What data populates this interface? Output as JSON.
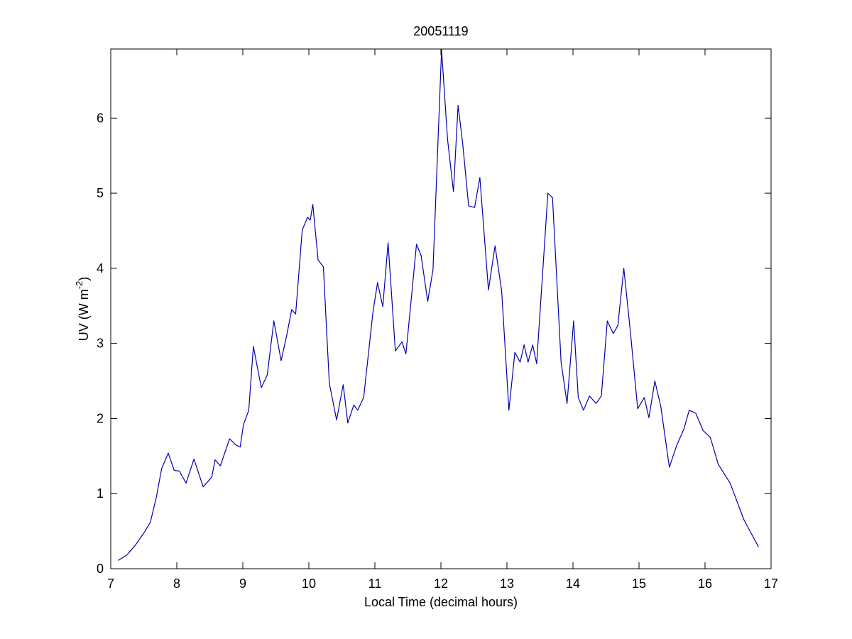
{
  "chart_data": {
    "type": "line",
    "title": "20051119",
    "xlabel": "Local Time (decimal hours)",
    "ylabel": [
      "UV (W m",
      "-2",
      ")"
    ],
    "color": "#0000b0",
    "xlim": [
      7,
      17
    ],
    "ylim": [
      0,
      6.92
    ],
    "xticks": [
      7,
      8,
      9,
      10,
      11,
      12,
      13,
      14,
      15,
      16,
      17
    ],
    "yticks": [
      0,
      1,
      2,
      3,
      4,
      5,
      6
    ],
    "x": [
      7.11,
      7.24,
      7.37,
      7.52,
      7.6,
      7.69,
      7.77,
      7.87,
      7.96,
      8.04,
      8.14,
      8.26,
      8.4,
      8.53,
      8.58,
      8.66,
      8.8,
      8.89,
      8.96,
      9.01,
      9.09,
      9.16,
      9.28,
      9.37,
      9.47,
      9.58,
      9.67,
      9.74,
      9.8,
      9.9,
      9.98,
      10.02,
      10.06,
      10.14,
      10.22,
      10.31,
      10.42,
      10.52,
      10.59,
      10.68,
      10.74,
      10.83,
      10.97,
      11.04,
      11.12,
      11.2,
      11.31,
      11.41,
      11.47,
      11.55,
      11.63,
      11.7,
      11.8,
      11.88,
      12.01,
      12.1,
      12.19,
      12.26,
      12.33,
      12.42,
      12.51,
      12.59,
      12.72,
      12.82,
      12.92,
      13.03,
      13.12,
      13.2,
      13.26,
      13.32,
      13.39,
      13.45,
      13.62,
      13.69,
      13.82,
      13.91,
      14.01,
      14.08,
      14.16,
      14.25,
      14.35,
      14.43,
      14.52,
      14.61,
      14.68,
      14.77,
      14.87,
      14.98,
      15.08,
      15.15,
      15.24,
      15.33,
      15.46,
      15.57,
      15.68,
      15.76,
      15.86,
      15.97,
      16.08,
      16.2,
      16.38,
      16.59,
      16.81
    ],
    "values": [
      0.11,
      0.18,
      0.31,
      0.5,
      0.62,
      0.95,
      1.33,
      1.54,
      1.31,
      1.3,
      1.14,
      1.46,
      1.09,
      1.22,
      1.45,
      1.37,
      1.73,
      1.65,
      1.62,
      1.92,
      2.11,
      2.96,
      2.41,
      2.58,
      3.3,
      2.77,
      3.13,
      3.45,
      3.39,
      4.51,
      4.68,
      4.64,
      4.85,
      4.11,
      4.02,
      2.47,
      1.98,
      2.45,
      1.94,
      2.18,
      2.11,
      2.28,
      3.41,
      3.81,
      3.49,
      4.34,
      2.9,
      3.02,
      2.86,
      3.58,
      4.32,
      4.17,
      3.56,
      3.98,
      6.91,
      5.72,
      5.02,
      6.17,
      5.66,
      4.83,
      4.81,
      5.21,
      3.71,
      4.3,
      3.7,
      2.11,
      2.88,
      2.75,
      2.98,
      2.75,
      2.98,
      2.73,
      5.0,
      4.94,
      2.75,
      2.2,
      3.3,
      2.28,
      2.11,
      2.3,
      2.2,
      2.3,
      3.3,
      3.13,
      3.24,
      4.0,
      3.15,
      2.13,
      2.28,
      2.01,
      2.5,
      2.16,
      1.35,
      1.64,
      1.86,
      2.11,
      2.07,
      1.84,
      1.75,
      1.39,
      1.14,
      0.65,
      0.29
    ]
  }
}
